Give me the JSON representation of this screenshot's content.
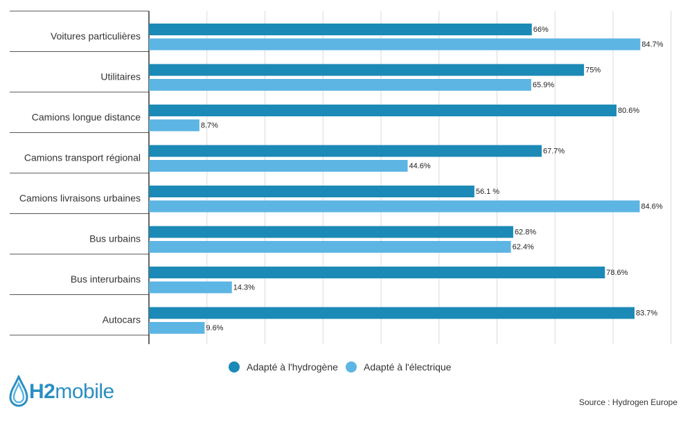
{
  "brand": {
    "logo_h2": "H2",
    "logo_mobile": "mobile",
    "accent": "#2a8ec2"
  },
  "source": "Source : Hydrogen Europe",
  "chart_data": {
    "type": "bar",
    "orientation": "horizontal",
    "categories": [
      "Voitures particulières",
      "Utilitaires",
      "Camions longue distance",
      "Camions transport régional",
      "Camions livraisons urbaines",
      "Bus urbains",
      "Bus interurbains",
      "Autocars"
    ],
    "series": [
      {
        "name": "Adapté à l'hydrogène",
        "color": "#1c8ab6",
        "values": [
          66,
          75,
          80.6,
          67.7,
          56.1,
          62.8,
          78.6,
          83.7
        ],
        "labels": [
          "66%",
          "75%",
          "80.6%",
          "67.7%",
          "56.1 %",
          "62.8%",
          "78.6%",
          "83.7%"
        ]
      },
      {
        "name": "Adapté à l'électrique",
        "color": "#5db5e3",
        "values": [
          84.7,
          65.9,
          8.7,
          44.6,
          84.6,
          62.4,
          14.3,
          9.6
        ],
        "labels": [
          "84.7%",
          "65.9%",
          "8.7%",
          "44.6%",
          "84.6%",
          "62.4%",
          "14.3%",
          "9.6%"
        ]
      }
    ],
    "xlim": [
      0,
      90
    ],
    "grid": true,
    "legend_position": "bottom"
  }
}
